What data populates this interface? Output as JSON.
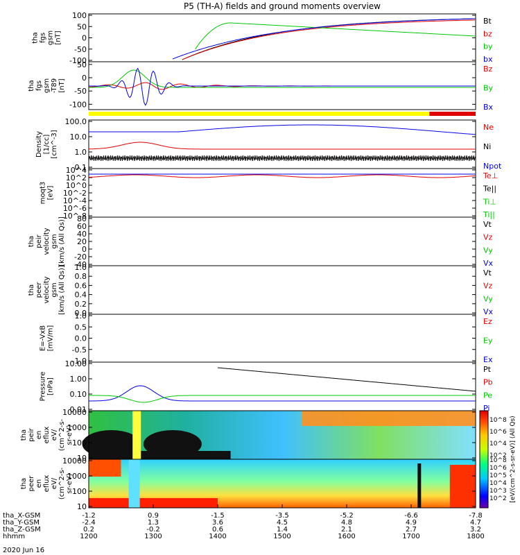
{
  "chart_data": {
    "type": "line",
    "title": "P5 (TH-A) fields and ground moments overview",
    "panels": [
      {
        "id": "fgs_gsm",
        "ylabel": [
          "tha",
          "fgs",
          "gsm",
          "[nT]"
        ],
        "ylim": [
          -100,
          100
        ],
        "yticks": [
          "100",
          "50",
          "0",
          "-50",
          "-100"
        ],
        "legend": [
          {
            "name": "Bt",
            "color": "#000000"
          },
          {
            "name": "bz",
            "color": "#e00000"
          },
          {
            "name": "by",
            "color": "#00c800"
          },
          {
            "name": "bx",
            "color": "#0000e6"
          }
        ]
      },
      {
        "id": "fgs_gsm_t89",
        "ylabel": [
          "tha",
          "fgs",
          "gsm",
          "-T89",
          "[nT]"
        ],
        "ylim": [
          -120,
          60
        ],
        "yticks": [
          "50",
          "0",
          "-50",
          "-100"
        ],
        "legend": [
          {
            "name": "Bz",
            "color": "#e00000"
          },
          {
            "name": "By",
            "color": "#00c800"
          },
          {
            "name": "Bx",
            "color": "#0000e6"
          }
        ],
        "status_bar": [
          {
            "from": "1200",
            "to": "1717",
            "color": "#ffff00"
          },
          {
            "from": "1717",
            "to": "1800",
            "color": "#e00000"
          }
        ]
      },
      {
        "id": "density",
        "ylabel": [
          "Density",
          "[1/cc]",
          "[cm^-3]"
        ],
        "scale": "log",
        "yticks": [
          "100.0",
          "10.0",
          "1.0",
          "0.1"
        ],
        "legend": [
          {
            "name": "Ne",
            "color": "#e00000"
          },
          {
            "name": "Ni",
            "color": "#000000"
          },
          {
            "name": "Npot",
            "color": "#0000e6"
          }
        ]
      },
      {
        "id": "temperature",
        "ylabel": [
          "moqt3",
          "[eV]"
        ],
        "scale": "log",
        "yticks": [
          "10^4",
          "10^2",
          "10^0",
          "10^-2",
          "10^-4",
          "10^-6",
          "10^-8"
        ],
        "legend": [
          {
            "name": "Te⊥",
            "color": "#e00000"
          },
          {
            "name": "Te||",
            "color": "#000000"
          },
          {
            "name": "Ti⊥",
            "color": "#00c800"
          },
          {
            "name": "Ti||",
            "color": "#00c800"
          }
        ]
      },
      {
        "id": "peir_velocity",
        "ylabel": [
          "tha",
          "peir",
          "velocity",
          "gsm",
          "[km/s (All Qs)]"
        ],
        "ylim": [
          -40,
          80
        ],
        "yticks": [
          "80",
          "60",
          "40",
          "20",
          "0",
          "-20",
          "-40"
        ],
        "legend": [
          {
            "name": "Vt",
            "color": "#000000"
          },
          {
            "name": "Vz",
            "color": "#e00000"
          },
          {
            "name": "Vy",
            "color": "#00c800"
          },
          {
            "name": "Vx",
            "color": "#0000e6"
          }
        ]
      },
      {
        "id": "peer_velocity",
        "ylabel": [
          "tha",
          "peer",
          "velocity",
          "gsm",
          "[km/s (All Qs)]"
        ],
        "ylim": [
          0,
          1
        ],
        "yticks": [
          "1.0",
          "0.8",
          "0.6",
          "0.4",
          "0.2",
          "0.0"
        ],
        "legend": [
          {
            "name": "Vt",
            "color": "#000000"
          },
          {
            "name": "Vz",
            "color": "#e00000"
          },
          {
            "name": "Vy",
            "color": "#00c800"
          },
          {
            "name": "Vx",
            "color": "#0000e6"
          }
        ]
      },
      {
        "id": "efield",
        "ylabel": [
          "E=-VxB",
          "[mV/m]"
        ],
        "ylim": [
          -1,
          1
        ],
        "yticks": [
          "1.0",
          "0.5",
          "0.0",
          "-0.5",
          "-1.0"
        ],
        "legend": [
          {
            "name": "Ez",
            "color": "#e00000"
          },
          {
            "name": "Ey",
            "color": "#00c800"
          },
          {
            "name": "Ex",
            "color": "#0000e6"
          }
        ]
      },
      {
        "id": "pressure",
        "ylabel": [
          "Pressure",
          "[nPa]"
        ],
        "scale": "log",
        "yticks": [
          "10.00",
          "1.00",
          "0.10",
          "0.01"
        ],
        "legend": [
          {
            "name": "Pt",
            "color": "#000000"
          },
          {
            "name": "Pb",
            "color": "#e00000"
          },
          {
            "name": "Pe",
            "color": "#00c800"
          },
          {
            "name": "Pi",
            "color": "#0000e6"
          }
        ]
      },
      {
        "id": "peir_en_eflux",
        "ylabel": [
          "tha",
          "peir",
          "en",
          "eflux",
          "eV/",
          "(cm^2-s-",
          "sr-eV)"
        ],
        "yticks": [
          "10000",
          "1000",
          "100",
          "10"
        ]
      },
      {
        "id": "peer_en_eflux",
        "ylabel": [
          "tha",
          "peer",
          "en",
          "eflux",
          "eV/",
          "(cm^2-s-",
          "sr-eV)"
        ],
        "yticks": [
          "10000",
          "1000",
          "100",
          "10"
        ]
      }
    ],
    "colorbar": {
      "label": "[eV/(cm^2-s-sr-eV)] (All Qs)",
      "ticks_upper": [
        "10^8",
        "10^6",
        "10^4",
        "10^2"
      ],
      "ticks_lower": [
        "10^8",
        "10^6",
        "10^5",
        "10^4",
        "10^3",
        "10^2"
      ]
    },
    "x_axis": {
      "rows": [
        {
          "label": "tha_X-GSM",
          "values": [
            "-1.2",
            "0.9",
            "-1.5",
            "-3.5",
            "-5.2",
            "-6.6",
            "-7.8"
          ]
        },
        {
          "label": "tha_Y-GSM",
          "values": [
            "-2.4",
            "1.3",
            "3.6",
            "4.5",
            "4.8",
            "4.9",
            "4.7"
          ]
        },
        {
          "label": "tha_Z-GSM",
          "values": [
            "0.2",
            "-0.2",
            "0.6",
            "1.4",
            "2.1",
            "2.7",
            "3.2"
          ]
        },
        {
          "label": "hhmm",
          "values": [
            "1200",
            "1300",
            "1400",
            "1500",
            "1600",
            "1700",
            "1800"
          ]
        }
      ],
      "date": "2020 Jun 16"
    }
  }
}
